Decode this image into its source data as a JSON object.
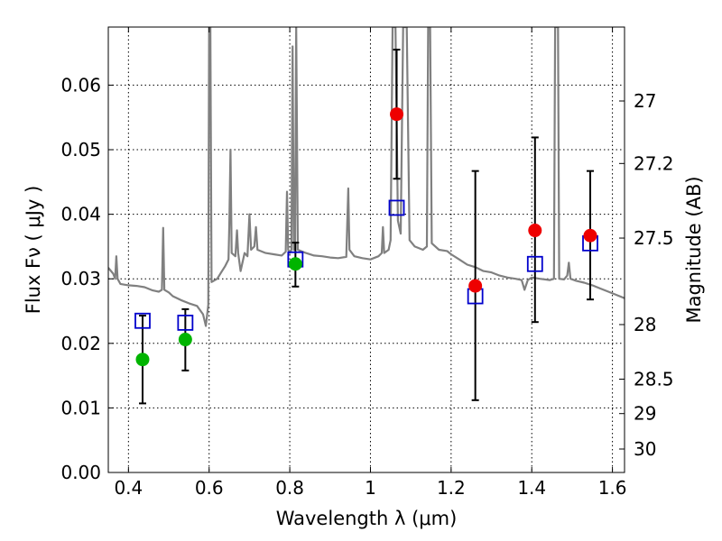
{
  "chart_data": {
    "type": "scatter",
    "xlabel": "Wavelength  λ (μm)",
    "ylabel": "Flux  Fν  ( μJy )",
    "ylabel_right": "Magnitude (AB)",
    "xlim": [
      0.35,
      1.63
    ],
    "ylim": [
      0.0,
      0.069
    ],
    "grid": true,
    "x_ticks": [
      0.4,
      0.6,
      0.8,
      1.0,
      1.2,
      1.4,
      1.6
    ],
    "x_tick_labels": [
      "0.4",
      "0.6",
      "0.8",
      "1",
      "1.2",
      "1.4",
      "1.6"
    ],
    "y_ticks": [
      0.0,
      0.01,
      0.02,
      0.03,
      0.04,
      0.05,
      0.06
    ],
    "y_tick_labels": [
      "0.00",
      "0.01",
      "0.02",
      "0.03",
      "0.04",
      "0.05",
      "0.06"
    ],
    "right_ticks": [
      27,
      27.2,
      27.5,
      28,
      28.5,
      29,
      30
    ],
    "right_tick_labels": [
      "27",
      "27.2",
      "27.5",
      "28",
      "28.5",
      "29",
      "30"
    ],
    "colors": {
      "green": "#00b400",
      "red": "#ee0000",
      "model_box": "#0000cc",
      "spectrum": "#808080",
      "errorbar": "#000000"
    },
    "series": [
      {
        "marker": "circle",
        "color": "#00b400",
        "points": [
          {
            "x": 0.435,
            "y": 0.0175,
            "err_lo": 0.0107,
            "err_hi": 0.0243
          },
          {
            "x": 0.541,
            "y": 0.0206,
            "err_lo": 0.0158,
            "err_hi": 0.0253
          },
          {
            "x": 0.814,
            "y": 0.0323,
            "err_lo": 0.0288,
            "err_hi": 0.0356
          }
        ]
      },
      {
        "marker": "circle",
        "color": "#ee0000",
        "points": [
          {
            "x": 1.065,
            "y": 0.0555,
            "err_lo": 0.0455,
            "err_hi": 0.0655
          },
          {
            "x": 1.26,
            "y": 0.0289,
            "err_lo": 0.0112,
            "err_hi": 0.0467
          },
          {
            "x": 1.408,
            "y": 0.0375,
            "err_lo": 0.0233,
            "err_hi": 0.0519
          },
          {
            "x": 1.545,
            "y": 0.0367,
            "err_lo": 0.0268,
            "err_hi": 0.0467
          }
        ]
      },
      {
        "marker": "square-open",
        "color": "#0000cc",
        "points": [
          {
            "x": 0.435,
            "y": 0.0235
          },
          {
            "x": 0.541,
            "y": 0.0232
          },
          {
            "x": 0.814,
            "y": 0.033
          },
          {
            "x": 1.065,
            "y": 0.041
          },
          {
            "x": 1.26,
            "y": 0.0273
          },
          {
            "x": 1.408,
            "y": 0.0323
          },
          {
            "x": 1.545,
            "y": 0.0355
          }
        ]
      }
    ],
    "spectrum": {
      "color": "#808080",
      "points": [
        [
          0.35,
          0.0317
        ],
        [
          0.362,
          0.0308
        ],
        [
          0.367,
          0.03
        ],
        [
          0.37,
          0.0335
        ],
        [
          0.373,
          0.03
        ],
        [
          0.38,
          0.0292
        ],
        [
          0.4,
          0.029
        ],
        [
          0.42,
          0.0289
        ],
        [
          0.44,
          0.0287
        ],
        [
          0.46,
          0.0282
        ],
        [
          0.475,
          0.028
        ],
        [
          0.483,
          0.0283
        ],
        [
          0.486,
          0.0379
        ],
        [
          0.489,
          0.0283
        ],
        [
          0.5,
          0.0279
        ],
        [
          0.51,
          0.0273
        ],
        [
          0.53,
          0.0267
        ],
        [
          0.55,
          0.0262
        ],
        [
          0.57,
          0.0258
        ],
        [
          0.585,
          0.0245
        ],
        [
          0.592,
          0.0227
        ],
        [
          0.598,
          0.026
        ],
        [
          0.6,
          0.069
        ],
        [
          0.603,
          0.069
        ],
        [
          0.606,
          0.0295
        ],
        [
          0.62,
          0.03
        ],
        [
          0.63,
          0.031
        ],
        [
          0.64,
          0.032
        ],
        [
          0.648,
          0.033
        ],
        [
          0.65,
          0.0385
        ],
        [
          0.653,
          0.05
        ],
        [
          0.656,
          0.034
        ],
        [
          0.665,
          0.0335
        ],
        [
          0.669,
          0.0375
        ],
        [
          0.672,
          0.034
        ],
        [
          0.678,
          0.0312
        ],
        [
          0.688,
          0.034
        ],
        [
          0.695,
          0.0335
        ],
        [
          0.7,
          0.04
        ],
        [
          0.704,
          0.0345
        ],
        [
          0.712,
          0.035
        ],
        [
          0.716,
          0.038
        ],
        [
          0.72,
          0.0345
        ],
        [
          0.74,
          0.034
        ],
        [
          0.76,
          0.0338
        ],
        [
          0.78,
          0.0336
        ],
        [
          0.79,
          0.0342
        ],
        [
          0.793,
          0.0435
        ],
        [
          0.796,
          0.0345
        ],
        [
          0.8,
          0.034
        ],
        [
          0.804,
          0.0345
        ],
        [
          0.807,
          0.066
        ],
        [
          0.81,
          0.0345
        ],
        [
          0.813,
          0.0346
        ],
        [
          0.816,
          0.069
        ],
        [
          0.82,
          0.0345
        ],
        [
          0.84,
          0.034
        ],
        [
          0.86,
          0.0336
        ],
        [
          0.88,
          0.0335
        ],
        [
          0.9,
          0.0333
        ],
        [
          0.92,
          0.0332
        ],
        [
          0.94,
          0.0334
        ],
        [
          0.945,
          0.044
        ],
        [
          0.948,
          0.0345
        ],
        [
          0.96,
          0.0335
        ],
        [
          0.98,
          0.0332
        ],
        [
          1.0,
          0.033
        ],
        [
          1.02,
          0.0335
        ],
        [
          1.028,
          0.034
        ],
        [
          1.031,
          0.038
        ],
        [
          1.034,
          0.034
        ],
        [
          1.045,
          0.0345
        ],
        [
          1.05,
          0.036
        ],
        [
          1.055,
          0.069
        ],
        [
          1.062,
          0.069
        ],
        [
          1.068,
          0.039
        ],
        [
          1.075,
          0.037
        ],
        [
          1.081,
          0.069
        ],
        [
          1.09,
          0.069
        ],
        [
          1.097,
          0.036
        ],
        [
          1.11,
          0.035
        ],
        [
          1.13,
          0.0345
        ],
        [
          1.14,
          0.035
        ],
        [
          1.143,
          0.069
        ],
        [
          1.148,
          0.069
        ],
        [
          1.152,
          0.0355
        ],
        [
          1.17,
          0.0345
        ],
        [
          1.19,
          0.0343
        ],
        [
          1.2,
          0.0338
        ],
        [
          1.22,
          0.033
        ],
        [
          1.24,
          0.0322
        ],
        [
          1.26,
          0.0318
        ],
        [
          1.28,
          0.0312
        ],
        [
          1.3,
          0.031
        ],
        [
          1.32,
          0.0305
        ],
        [
          1.34,
          0.0302
        ],
        [
          1.36,
          0.03
        ],
        [
          1.375,
          0.0298
        ],
        [
          1.382,
          0.0283
        ],
        [
          1.39,
          0.0298
        ],
        [
          1.4,
          0.0302
        ],
        [
          1.42,
          0.03
        ],
        [
          1.445,
          0.0298
        ],
        [
          1.455,
          0.03
        ],
        [
          1.458,
          0.069
        ],
        [
          1.465,
          0.069
        ],
        [
          1.468,
          0.03
        ],
        [
          1.48,
          0.0299
        ],
        [
          1.488,
          0.0305
        ],
        [
          1.492,
          0.0325
        ],
        [
          1.496,
          0.03
        ],
        [
          1.51,
          0.0297
        ],
        [
          1.53,
          0.0294
        ],
        [
          1.55,
          0.029
        ],
        [
          1.57,
          0.0285
        ],
        [
          1.59,
          0.028
        ],
        [
          1.61,
          0.0275
        ],
        [
          1.63,
          0.027
        ]
      ]
    }
  }
}
